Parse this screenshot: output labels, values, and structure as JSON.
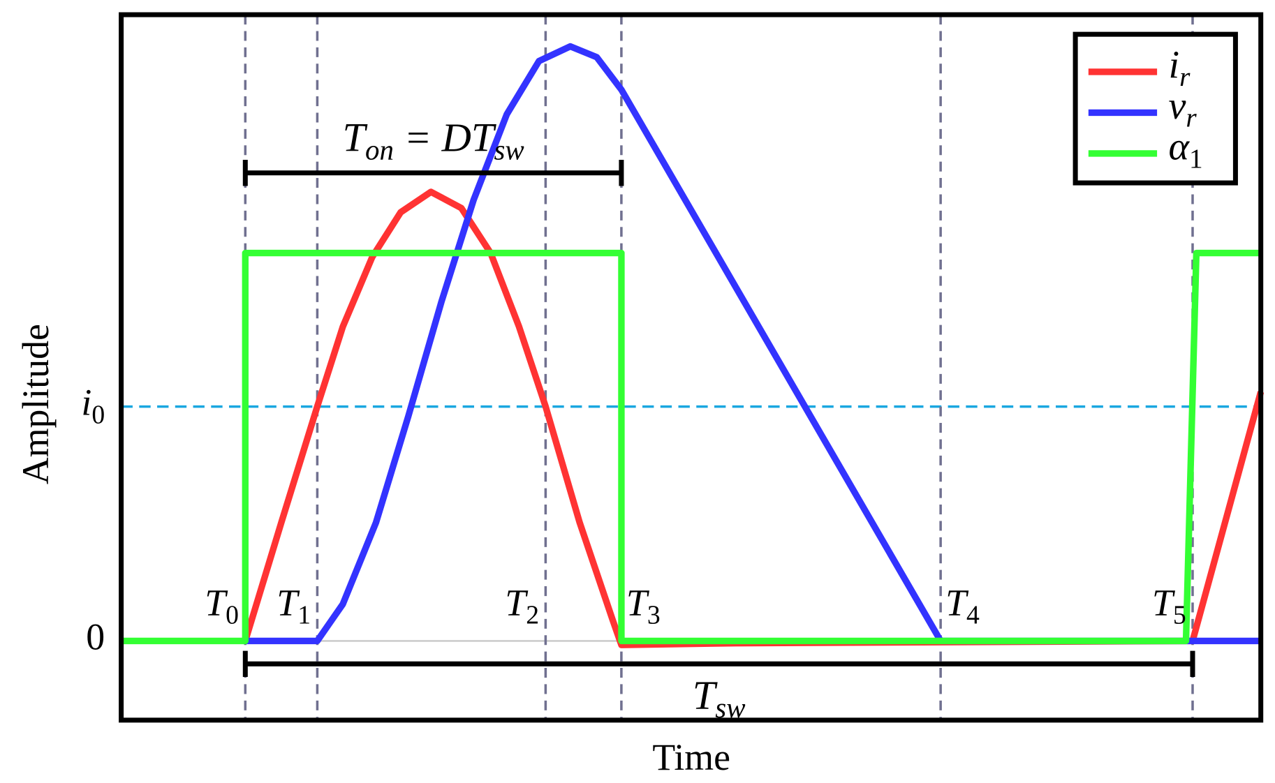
{
  "chart_data": {
    "type": "line",
    "xlabel": "Time",
    "ylabel": "Amplitude",
    "xlim": [
      -0.131,
      1.072
    ],
    "ylim": [
      -0.338,
      2.672
    ],
    "yticks": [
      0,
      {
        "value": 1,
        "label": [
          "i",
          "0"
        ]
      }
    ],
    "grid": true,
    "grid_colors": [
      "#c8c8c8",
      "#1aa7e0"
    ],
    "xticks": [
      {
        "value": 0,
        "label": [
          "T",
          "0"
        ]
      },
      {
        "value": 0.076,
        "label": [
          "T",
          "1"
        ]
      },
      {
        "value": 0.317,
        "label": [
          "T",
          "2"
        ]
      },
      {
        "value": 0.397,
        "label": [
          "T",
          "3"
        ]
      },
      {
        "value": 0.734,
        "label": [
          "T",
          "4"
        ]
      },
      {
        "value": 1,
        "label": [
          "T",
          "5"
        ]
      }
    ],
    "legend": "upper right",
    "series": [
      {
        "name": [
          "i",
          "r"
        ],
        "color": "#ff3333",
        "x": [
          0,
          0.038,
          0.076,
          0.103,
          0.134,
          0.164,
          0.196,
          0.228,
          0.259,
          0.289,
          0.317,
          0.353,
          0.388,
          0.397,
          0.517,
          1,
          1.072
        ],
        "y": [
          0,
          0.505,
          1,
          1.341,
          1.638,
          1.829,
          1.916,
          1.847,
          1.655,
          1.341,
          1,
          0.505,
          0.087,
          -0.017,
          -0.01,
          0,
          1.063
        ]
      },
      {
        "name": [
          "v",
          "r"
        ],
        "color": "#3333ff",
        "x": [
          0,
          0.076,
          0.103,
          0.138,
          0.172,
          0.207,
          0.241,
          0.276,
          0.31,
          0.343,
          0.371,
          0.397,
          0.734,
          1.072
        ],
        "y": [
          0,
          0,
          0.157,
          0.505,
          0.958,
          1.446,
          1.882,
          2.247,
          2.474,
          2.537,
          2.491,
          2.352,
          0,
          0
        ]
      },
      {
        "name": [
          "α",
          "1"
        ],
        "color": "#33ff33",
        "x": [
          -0.131,
          0,
          0,
          0.397,
          0.397,
          0.993,
          1.004,
          1.072
        ],
        "y": [
          0,
          0,
          1.655,
          1.655,
          0,
          0,
          1.655,
          1.655
        ]
      }
    ],
    "brackets": [
      {
        "label": [
          "T",
          "on",
          " = DT",
          "sw"
        ],
        "x": [
          0,
          0.397
        ],
        "y": 1.997
      },
      {
        "label": [
          "T",
          "sw"
        ],
        "x": [
          0,
          1
        ],
        "y": -0.098
      }
    ]
  }
}
